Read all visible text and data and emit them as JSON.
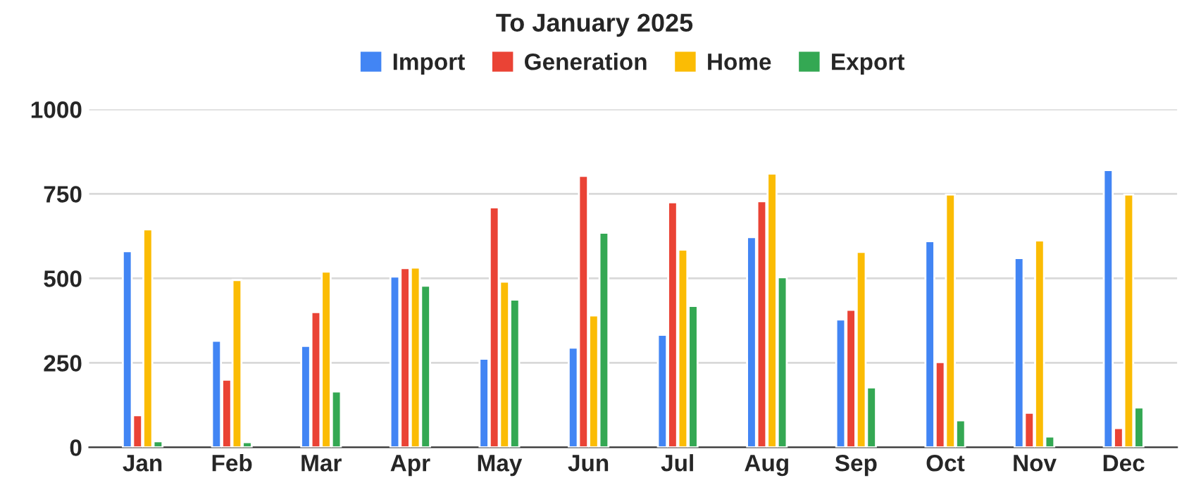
{
  "chart_data": {
    "type": "bar",
    "title": "To January 2025",
    "categories": [
      "Jan",
      "Feb",
      "Mar",
      "Apr",
      "May",
      "Jun",
      "Jul",
      "Aug",
      "Sep",
      "Oct",
      "Nov",
      "Dec"
    ],
    "series": [
      {
        "name": "Import",
        "color": "#4285f4",
        "values": [
          580,
          315,
          300,
          505,
          262,
          295,
          333,
          622,
          378,
          610,
          560,
          820
        ]
      },
      {
        "name": "Generation",
        "color": "#ea4335",
        "values": [
          95,
          200,
          400,
          530,
          710,
          803,
          725,
          728,
          407,
          252,
          102,
          57
        ]
      },
      {
        "name": "Home",
        "color": "#fbbc04",
        "values": [
          645,
          495,
          520,
          532,
          490,
          390,
          585,
          810,
          578,
          748,
          612,
          748
        ]
      },
      {
        "name": "Export",
        "color": "#34a853",
        "values": [
          18,
          15,
          165,
          478,
          437,
          635,
          418,
          503,
          177,
          80,
          32,
          118
        ]
      }
    ],
    "ylim": [
      0,
      1000
    ],
    "yticks": [
      0,
      250,
      500,
      750,
      1000
    ],
    "grid": "y",
    "legend": "top"
  }
}
